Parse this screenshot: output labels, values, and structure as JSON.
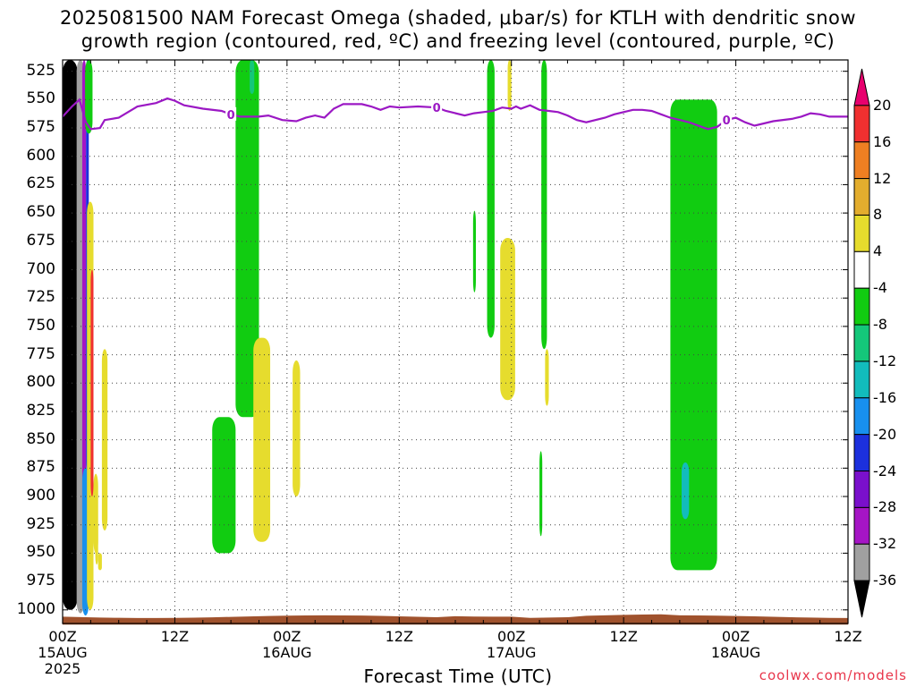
{
  "title": {
    "line1": "2025081500 NAM Forecast Omega (shaded, μbar/s) for KTLH with dendritic snow",
    "line2": "growth region (contoured, red, ºC) and freezing level (contoured, purple, ºC)"
  },
  "xaxis_title": "Forecast Time (UTC)",
  "credit": "coolwx.com/models",
  "chart_data": {
    "type": "heatmap",
    "title": "2025081500 NAM Forecast Omega (shaded, μbar/s) for KTLH with dendritic snow growth region (contoured, red, ºC) and freezing level (contoured, purple, ºC)",
    "xlabel": "Forecast Time (UTC)",
    "ylabel": "",
    "xlim": [
      0,
      84
    ],
    "ylim": [
      1012,
      515
    ],
    "x_unit": "forecast hour",
    "y_unit": "hPa",
    "y_ticks": [
      525,
      550,
      575,
      600,
      625,
      650,
      675,
      700,
      725,
      750,
      775,
      800,
      825,
      850,
      875,
      900,
      925,
      950,
      975,
      1000
    ],
    "x_ticks": [
      {
        "hour": 0,
        "label1": "00Z",
        "label2": "15AUG",
        "label3": "2025"
      },
      {
        "hour": 12,
        "label1": "12Z",
        "label2": "",
        "label3": ""
      },
      {
        "hour": 24,
        "label1": "00Z",
        "label2": "16AUG",
        "label3": ""
      },
      {
        "hour": 36,
        "label1": "12Z",
        "label2": "",
        "label3": ""
      },
      {
        "hour": 48,
        "label1": "00Z",
        "label2": "17AUG",
        "label3": ""
      },
      {
        "hour": 60,
        "label1": "12Z",
        "label2": "",
        "label3": ""
      },
      {
        "hour": 72,
        "label1": "00Z",
        "label2": "18AUG",
        "label3": ""
      },
      {
        "hour": 84,
        "label1": "12Z",
        "label2": "",
        "label3": ""
      }
    ],
    "grid": true,
    "colorbar": {
      "labels": [
        "20",
        "16",
        "12",
        "8",
        "4",
        "-4",
        "-8",
        "-12",
        "-16",
        "-20",
        "-24",
        "-28",
        "-32",
        "-36"
      ],
      "colors": [
        "#e8006e",
        "#f03030",
        "#ee7f22",
        "#e3ad2e",
        "#e6dc2d",
        "#ffffff",
        "#11cc11",
        "#14c77a",
        "#12bcbc",
        "#1890ee",
        "#1c30dd",
        "#7a10cc",
        "#a515c5",
        "#a0a0a0",
        "#000000"
      ]
    },
    "freezing_level": {
      "color": "#9b18c4",
      "label": "0",
      "points": [
        [
          0,
          565
        ],
        [
          1,
          556
        ],
        [
          1.8,
          550
        ],
        [
          2.5,
          570
        ],
        [
          3,
          576
        ],
        [
          4,
          575
        ],
        [
          4.5,
          568
        ],
        [
          6,
          566
        ],
        [
          8,
          556
        ],
        [
          10,
          553
        ],
        [
          11.2,
          549
        ],
        [
          12,
          551
        ],
        [
          13,
          555
        ],
        [
          15,
          558
        ],
        [
          17,
          560
        ],
        [
          18,
          563
        ],
        [
          19,
          565
        ],
        [
          21,
          565
        ],
        [
          22,
          564
        ],
        [
          23.5,
          568
        ],
        [
          25,
          569
        ],
        [
          26,
          566
        ],
        [
          27,
          564
        ],
        [
          28,
          566
        ],
        [
          29,
          558
        ],
        [
          30,
          554
        ],
        [
          32,
          554
        ],
        [
          33,
          556
        ],
        [
          34,
          559
        ],
        [
          35,
          556
        ],
        [
          36,
          557
        ],
        [
          38,
          556
        ],
        [
          40,
          557
        ],
        [
          41,
          560
        ],
        [
          43,
          564
        ],
        [
          44,
          562
        ],
        [
          45,
          561
        ],
        [
          46,
          560
        ],
        [
          47,
          557
        ],
        [
          48,
          558
        ],
        [
          48.5,
          556
        ],
        [
          49,
          558
        ],
        [
          50,
          555
        ],
        [
          51,
          559
        ],
        [
          52,
          560
        ],
        [
          53,
          561
        ],
        [
          54,
          564
        ],
        [
          55,
          568
        ],
        [
          56,
          570
        ],
        [
          58,
          566
        ],
        [
          59,
          563
        ],
        [
          60,
          561
        ],
        [
          61,
          559
        ],
        [
          62,
          559
        ],
        [
          63,
          560
        ],
        [
          64,
          563
        ],
        [
          65,
          566
        ],
        [
          67,
          570
        ],
        [
          69,
          576
        ],
        [
          70,
          574
        ],
        [
          71,
          568
        ],
        [
          72,
          566
        ],
        [
          73,
          570
        ],
        [
          74,
          573
        ],
        [
          75,
          571
        ],
        [
          76,
          569
        ],
        [
          78,
          567
        ],
        [
          79,
          565
        ],
        [
          80,
          562
        ],
        [
          81,
          563
        ],
        [
          82,
          565
        ],
        [
          84,
          565
        ]
      ],
      "label_hours": [
        18,
        40,
        71
      ]
    },
    "terrain": {
      "color": "#a0522d",
      "surface_pressure": 1013
    },
    "omega_features": [
      {
        "x": [
          0,
          1.6
        ],
        "top": 515,
        "bottom": 1000,
        "value": -40
      },
      {
        "x": [
          1.5,
          2.3
        ],
        "top": 515,
        "bottom": 1003,
        "value": -36
      },
      {
        "x": [
          2.1,
          2.5
        ],
        "top": 515,
        "bottom": 920,
        "value": -30
      },
      {
        "x": [
          2.5,
          2.8
        ],
        "top": 515,
        "bottom": 880,
        "value": -24
      },
      {
        "x": [
          2.1,
          2.8
        ],
        "top": 875,
        "bottom": 1005,
        "value": -20
      },
      {
        "x": [
          2.4,
          3.2
        ],
        "top": 515,
        "bottom": 580,
        "value": -6
      },
      {
        "x": [
          2.6,
          3.3
        ],
        "top": 640,
        "bottom": 1000,
        "value": 6
      },
      {
        "x": [
          3.0,
          3.3
        ],
        "top": 700,
        "bottom": 900,
        "value": 16
      },
      {
        "x": [
          3.3,
          3.8
        ],
        "top": 880,
        "bottom": 950,
        "value": 6
      },
      {
        "x": [
          3.5,
          3.8
        ],
        "top": 920,
        "bottom": 960,
        "value": 6
      },
      {
        "x": [
          3.8,
          4.2
        ],
        "top": 950,
        "bottom": 965,
        "value": 6
      },
      {
        "x": [
          4.2,
          4.8
        ],
        "top": 770,
        "bottom": 930,
        "value": 6
      },
      {
        "x": [
          16,
          18.5
        ],
        "top": 830,
        "bottom": 950,
        "value": -6
      },
      {
        "x": [
          18.5,
          21.0
        ],
        "top": 515,
        "bottom": 830,
        "value": -6
      },
      {
        "x": [
          20.0,
          20.5
        ],
        "top": 515,
        "bottom": 545,
        "value": -10
      },
      {
        "x": [
          20.4,
          22.2
        ],
        "top": 760,
        "bottom": 940,
        "value": 6
      },
      {
        "x": [
          24.6,
          25.4
        ],
        "top": 780,
        "bottom": 900,
        "value": 6
      },
      {
        "x": [
          43.9,
          44.2
        ],
        "top": 648,
        "bottom": 720,
        "value": -6
      },
      {
        "x": [
          45.4,
          46.2
        ],
        "top": 515,
        "bottom": 760,
        "value": -6
      },
      {
        "x": [
          46.8,
          48.4
        ],
        "top": 672,
        "bottom": 815,
        "value": 6
      },
      {
        "x": [
          47.6,
          48.0
        ],
        "top": 515,
        "bottom": 560,
        "value": 6
      },
      {
        "x": [
          51.2,
          51.8
        ],
        "top": 515,
        "bottom": 770,
        "value": -6
      },
      {
        "x": [
          51.6,
          52.0
        ],
        "top": 770,
        "bottom": 820,
        "value": 6
      },
      {
        "x": [
          51.0,
          51.3
        ],
        "top": 860,
        "bottom": 935,
        "value": -6
      },
      {
        "x": [
          65.0,
          70.0
        ],
        "top": 550,
        "bottom": 965,
        "value": -6
      },
      {
        "x": [
          66.2,
          67.0
        ],
        "top": 870,
        "bottom": 920,
        "value": -14
      }
    ]
  }
}
